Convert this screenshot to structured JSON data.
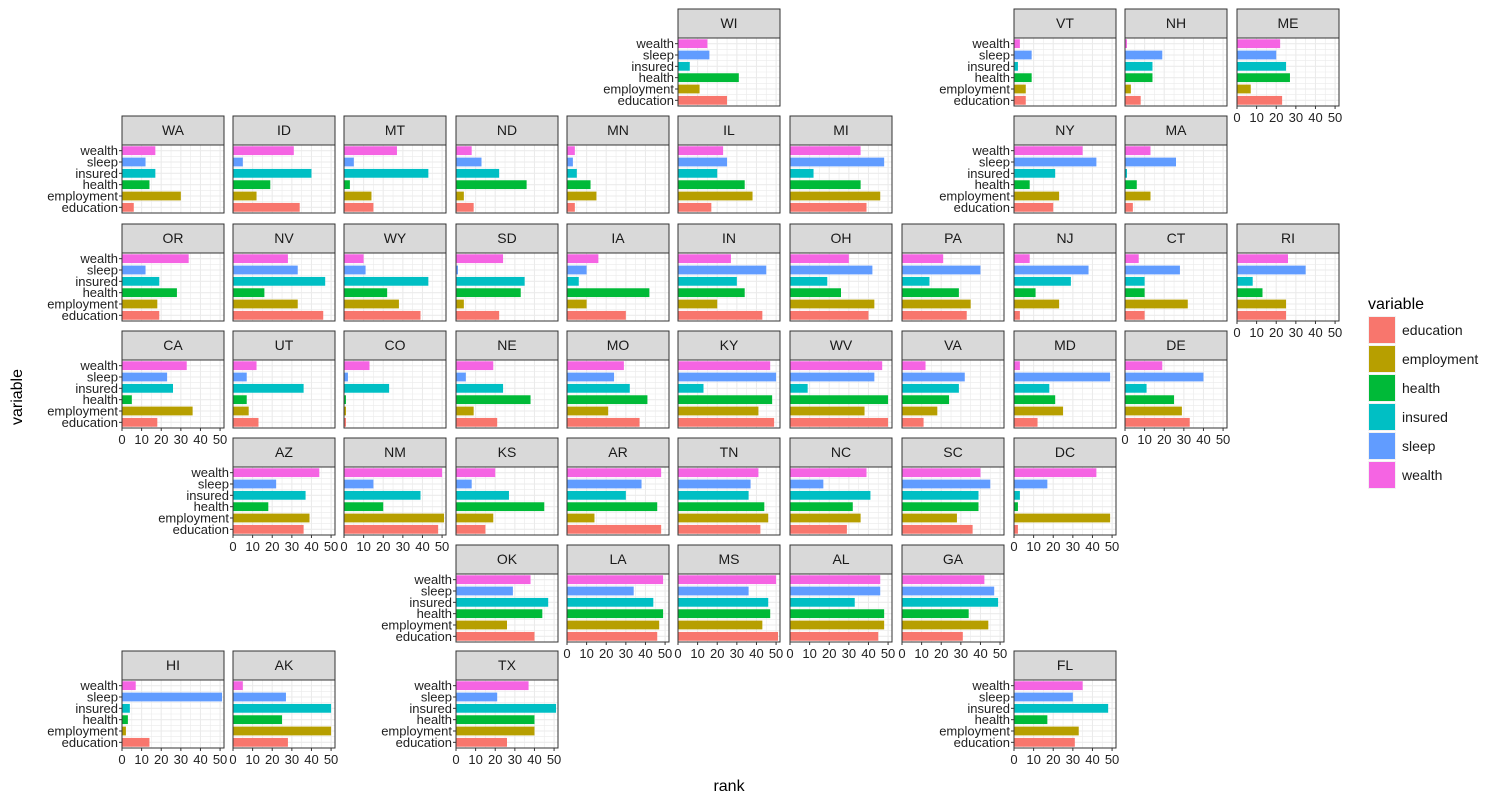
{
  "chart_data": {
    "type": "bar",
    "subtype": "faceted horizontal bar (US state grid map)",
    "xlabel": "rank",
    "ylabel": "variable",
    "xlim": [
      0,
      52
    ],
    "x_ticks": [
      0,
      10,
      20,
      30,
      40,
      50
    ],
    "x_tick_labels": [
      "0",
      "10",
      "20",
      "30",
      "40",
      "50"
    ],
    "categories": [
      "wealth",
      "sleep",
      "insured",
      "health",
      "employment",
      "education"
    ],
    "legend": {
      "title": "variable",
      "position": "right",
      "items": [
        {
          "label": "education",
          "color": "#F8766D"
        },
        {
          "label": "employment",
          "color": "#B79F00"
        },
        {
          "label": "health",
          "color": "#00BA38"
        },
        {
          "label": "insured",
          "color": "#00BFC4"
        },
        {
          "label": "sleep",
          "color": "#619CFF"
        },
        {
          "label": "wealth",
          "color": "#F564E3"
        }
      ]
    },
    "colors": {
      "wealth": "#F564E3",
      "sleep": "#619CFF",
      "insured": "#00BFC4",
      "health": "#00BA38",
      "employment": "#B79F00",
      "education": "#F8766D",
      "strip_fill": "#D9D9D9",
      "grid": "#EBEBEB"
    },
    "panels": [
      {
        "state": "WI",
        "values": {
          "wealth": 15,
          "sleep": 16,
          "insured": 6,
          "health": 31,
          "employment": 11,
          "education": 25
        }
      },
      {
        "state": "VT",
        "values": {
          "wealth": 3,
          "sleep": 9,
          "insured": 2,
          "health": 9,
          "employment": 6,
          "education": 6
        }
      },
      {
        "state": "NH",
        "values": {
          "wealth": 1,
          "sleep": 19,
          "insured": 14,
          "health": 14,
          "employment": 3,
          "education": 8
        }
      },
      {
        "state": "ME",
        "values": {
          "wealth": 22,
          "sleep": 20,
          "insured": 25,
          "health": 27,
          "employment": 7,
          "education": 23
        }
      },
      {
        "state": "WA",
        "values": {
          "wealth": 17,
          "sleep": 12,
          "insured": 17,
          "health": 14,
          "employment": 30,
          "education": 6
        }
      },
      {
        "state": "ID",
        "values": {
          "wealth": 31,
          "sleep": 5,
          "insured": 40,
          "health": 19,
          "employment": 12,
          "education": 34
        }
      },
      {
        "state": "MT",
        "values": {
          "wealth": 27,
          "sleep": 5,
          "insured": 43,
          "health": 3,
          "employment": 14,
          "education": 15
        }
      },
      {
        "state": "ND",
        "values": {
          "wealth": 8,
          "sleep": 13,
          "insured": 22,
          "health": 36,
          "employment": 4,
          "education": 9
        }
      },
      {
        "state": "MN",
        "values": {
          "wealth": 4,
          "sleep": 3,
          "insured": 5,
          "health": 12,
          "employment": 15,
          "education": 4
        }
      },
      {
        "state": "IL",
        "values": {
          "wealth": 23,
          "sleep": 25,
          "insured": 20,
          "health": 34,
          "employment": 38,
          "education": 17
        }
      },
      {
        "state": "MI",
        "values": {
          "wealth": 36,
          "sleep": 48,
          "insured": 12,
          "health": 36,
          "employment": 46,
          "education": 39
        }
      },
      {
        "state": "NY",
        "values": {
          "wealth": 35,
          "sleep": 42,
          "insured": 21,
          "health": 8,
          "employment": 23,
          "education": 20
        }
      },
      {
        "state": "MA",
        "values": {
          "wealth": 13,
          "sleep": 26,
          "insured": 1,
          "health": 6,
          "employment": 13,
          "education": 4
        }
      },
      {
        "state": "OR",
        "values": {
          "wealth": 34,
          "sleep": 12,
          "insured": 19,
          "health": 28,
          "employment": 18,
          "education": 19
        }
      },
      {
        "state": "NV",
        "values": {
          "wealth": 28,
          "sleep": 33,
          "insured": 47,
          "health": 16,
          "employment": 33,
          "education": 46
        }
      },
      {
        "state": "WY",
        "values": {
          "wealth": 10,
          "sleep": 11,
          "insured": 43,
          "health": 22,
          "employment": 28,
          "education": 39
        }
      },
      {
        "state": "SD",
        "values": {
          "wealth": 24,
          "sleep": 1,
          "insured": 35,
          "health": 33,
          "employment": 4,
          "education": 22
        }
      },
      {
        "state": "IA",
        "values": {
          "wealth": 16,
          "sleep": 10,
          "insured": 6,
          "health": 42,
          "employment": 10,
          "education": 30
        }
      },
      {
        "state": "IN",
        "values": {
          "wealth": 27,
          "sleep": 45,
          "insured": 30,
          "health": 34,
          "employment": 20,
          "education": 43
        }
      },
      {
        "state": "OH",
        "values": {
          "wealth": 30,
          "sleep": 42,
          "insured": 19,
          "health": 26,
          "employment": 43,
          "education": 40
        }
      },
      {
        "state": "PA",
        "values": {
          "wealth": 21,
          "sleep": 40,
          "insured": 14,
          "health": 29,
          "employment": 35,
          "education": 33
        }
      },
      {
        "state": "NJ",
        "values": {
          "wealth": 8,
          "sleep": 38,
          "insured": 29,
          "health": 11,
          "employment": 23,
          "education": 3
        }
      },
      {
        "state": "CT",
        "values": {
          "wealth": 7,
          "sleep": 28,
          "insured": 10,
          "health": 10,
          "employment": 32,
          "education": 10
        }
      },
      {
        "state": "RI",
        "values": {
          "wealth": 26,
          "sleep": 35,
          "insured": 8,
          "health": 13,
          "employment": 25,
          "education": 25
        }
      },
      {
        "state": "CA",
        "values": {
          "wealth": 33,
          "sleep": 23,
          "insured": 26,
          "health": 5,
          "employment": 36,
          "education": 18
        }
      },
      {
        "state": "UT",
        "values": {
          "wealth": 12,
          "sleep": 7,
          "insured": 36,
          "health": 7,
          "employment": 8,
          "education": 13
        }
      },
      {
        "state": "CO",
        "values": {
          "wealth": 13,
          "sleep": 2,
          "insured": 23,
          "health": 1,
          "employment": 1,
          "education": 1
        }
      },
      {
        "state": "NE",
        "values": {
          "wealth": 19,
          "sleep": 5,
          "insured": 24,
          "health": 38,
          "employment": 9,
          "education": 21
        }
      },
      {
        "state": "MO",
        "values": {
          "wealth": 29,
          "sleep": 24,
          "insured": 32,
          "health": 41,
          "employment": 21,
          "education": 37
        }
      },
      {
        "state": "KY",
        "values": {
          "wealth": 47,
          "sleep": 50,
          "insured": 13,
          "health": 48,
          "employment": 41,
          "education": 49
        }
      },
      {
        "state": "WV",
        "values": {
          "wealth": 47,
          "sleep": 43,
          "insured": 9,
          "health": 50,
          "employment": 38,
          "education": 50
        }
      },
      {
        "state": "VA",
        "values": {
          "wealth": 12,
          "sleep": 32,
          "insured": 29,
          "health": 24,
          "employment": 18,
          "education": 11
        }
      },
      {
        "state": "MD",
        "values": {
          "wealth": 3,
          "sleep": 49,
          "insured": 18,
          "health": 21,
          "employment": 25,
          "education": 12
        }
      },
      {
        "state": "DE",
        "values": {
          "wealth": 19,
          "sleep": 40,
          "insured": 11,
          "health": 25,
          "employment": 29,
          "education": 33
        }
      },
      {
        "state": "AZ",
        "values": {
          "wealth": 44,
          "sleep": 22,
          "insured": 37,
          "health": 18,
          "employment": 39,
          "education": 36
        }
      },
      {
        "state": "NM",
        "values": {
          "wealth": 50,
          "sleep": 15,
          "insured": 39,
          "health": 20,
          "employment": 51,
          "education": 48
        }
      },
      {
        "state": "KS",
        "values": {
          "wealth": 20,
          "sleep": 8,
          "insured": 27,
          "health": 45,
          "employment": 19,
          "education": 15
        }
      },
      {
        "state": "AR",
        "values": {
          "wealth": 48,
          "sleep": 38,
          "insured": 30,
          "health": 46,
          "employment": 14,
          "education": 48
        }
      },
      {
        "state": "TN",
        "values": {
          "wealth": 41,
          "sleep": 37,
          "insured": 36,
          "health": 44,
          "employment": 46,
          "education": 42
        }
      },
      {
        "state": "NC",
        "values": {
          "wealth": 39,
          "sleep": 17,
          "insured": 41,
          "health": 32,
          "employment": 36,
          "education": 29
        }
      },
      {
        "state": "SC",
        "values": {
          "wealth": 40,
          "sleep": 45,
          "insured": 39,
          "health": 39,
          "employment": 28,
          "education": 36
        }
      },
      {
        "state": "DC",
        "values": {
          "wealth": 42,
          "sleep": 17,
          "insured": 3,
          "health": 2,
          "employment": 49,
          "education": 2
        }
      },
      {
        "state": "OK",
        "values": {
          "wealth": 38,
          "sleep": 29,
          "insured": 47,
          "health": 44,
          "employment": 26,
          "education": 40
        }
      },
      {
        "state": "LA",
        "values": {
          "wealth": 49,
          "sleep": 34,
          "insured": 44,
          "health": 49,
          "employment": 47,
          "education": 46
        }
      },
      {
        "state": "MS",
        "values": {
          "wealth": 50,
          "sleep": 36,
          "insured": 46,
          "health": 47,
          "employment": 43,
          "education": 51
        }
      },
      {
        "state": "AL",
        "values": {
          "wealth": 46,
          "sleep": 46,
          "insured": 33,
          "health": 48,
          "employment": 48,
          "education": 45
        }
      },
      {
        "state": "GA",
        "values": {
          "wealth": 42,
          "sleep": 47,
          "insured": 49,
          "health": 34,
          "employment": 44,
          "education": 31
        }
      },
      {
        "state": "HI",
        "values": {
          "wealth": 7,
          "sleep": 51,
          "insured": 4,
          "health": 3,
          "employment": 2,
          "education": 14
        }
      },
      {
        "state": "AK",
        "values": {
          "wealth": 5,
          "sleep": 27,
          "insured": 50,
          "health": 25,
          "employment": 50,
          "education": 28
        }
      },
      {
        "state": "TX",
        "values": {
          "wealth": 37,
          "sleep": 21,
          "insured": 51,
          "health": 40,
          "employment": 40,
          "education": 26
        }
      },
      {
        "state": "FL",
        "values": {
          "wealth": 35,
          "sleep": 30,
          "insured": 48,
          "health": 17,
          "employment": 33,
          "education": 31
        }
      }
    ]
  }
}
